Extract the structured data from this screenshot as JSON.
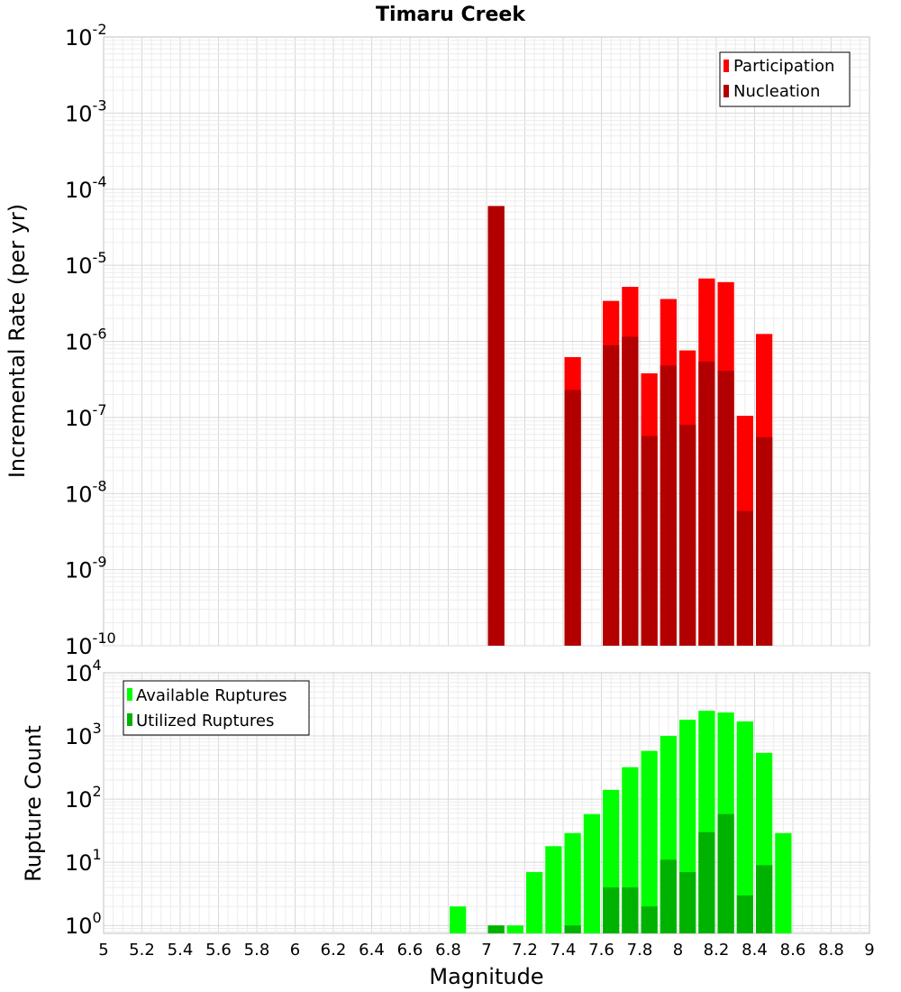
{
  "chart_data": [
    {
      "type": "bar",
      "title": "Timaru Creek",
      "xlabel": "Magnitude",
      "ylabel": "Incremental Rate (per yr)",
      "xlim": [
        5,
        9
      ],
      "ylim": [
        1e-10,
        0.01
      ],
      "yscale": "log",
      "ytick_exponents": [
        "-10",
        "-9",
        "-8",
        "-7",
        "-6",
        "-5",
        "-4",
        "-3",
        "-2"
      ],
      "grid": true,
      "legend_position": "top-right",
      "colors": {
        "Participation": "#ff0000",
        "Nucleation": "#b20000"
      },
      "bin_width": 0.1,
      "series": [
        {
          "name": "Participation",
          "x": [
            7.05,
            7.45,
            7.65,
            7.75,
            7.85,
            7.95,
            8.05,
            8.15,
            8.25,
            8.35,
            8.45
          ],
          "values": [
            6e-05,
            6.2e-07,
            3.4e-06,
            5.2e-06,
            3.8e-07,
            3.6e-06,
            7.6e-07,
            6.7e-06,
            6e-06,
            1.05e-07,
            1.25e-06
          ]
        },
        {
          "name": "Nucleation",
          "x": [
            7.05,
            7.45,
            7.65,
            7.75,
            7.85,
            7.95,
            8.05,
            8.15,
            8.25,
            8.35,
            8.45
          ],
          "values": [
            6e-05,
            2.3e-07,
            8.9e-07,
            1.15e-06,
            5.7e-08,
            4.8e-07,
            8e-08,
            5.4e-07,
            4.1e-07,
            5.9e-09,
            5.5e-08
          ]
        }
      ]
    },
    {
      "type": "bar",
      "title": "",
      "xlabel": "Magnitude",
      "ylabel": "Rupture Count",
      "xlim": [
        5,
        9
      ],
      "ylim": [
        0.75,
        10000.0
      ],
      "yscale": "log",
      "ytick_exponents": [
        "0",
        "1",
        "2",
        "3",
        "4"
      ],
      "grid": true,
      "legend_position": "top-left",
      "colors": {
        "Available Ruptures": "#00ff00",
        "Utilized Ruptures": "#00b200"
      },
      "bin_width": 0.1,
      "series": [
        {
          "name": "Available Ruptures",
          "x": [
            6.85,
            7.05,
            7.15,
            7.25,
            7.35,
            7.45,
            7.55,
            7.65,
            7.75,
            7.85,
            7.95,
            8.05,
            8.15,
            8.25,
            8.35,
            8.45,
            8.55
          ],
          "values": [
            2,
            1,
            1,
            7,
            18,
            29,
            58,
            140,
            320,
            580,
            1000,
            1800,
            2500,
            2350,
            1700,
            540,
            29
          ]
        },
        {
          "name": "Utilized Ruptures",
          "x": [
            7.05,
            7.45,
            7.65,
            7.75,
            7.85,
            7.95,
            8.05,
            8.15,
            8.25,
            8.35,
            8.45
          ],
          "values": [
            1,
            1,
            4,
            4,
            2,
            11,
            7,
            30,
            58,
            3,
            9
          ]
        }
      ]
    }
  ],
  "x_ticks": [
    "5",
    "5.2",
    "5.4",
    "5.6",
    "5.8",
    "6",
    "6.2",
    "6.4",
    "6.6",
    "6.8",
    "7",
    "7.2",
    "7.4",
    "7.6",
    "7.8",
    "8",
    "8.2",
    "8.4",
    "8.6",
    "8.8",
    "9"
  ],
  "y_tick_base": "10"
}
